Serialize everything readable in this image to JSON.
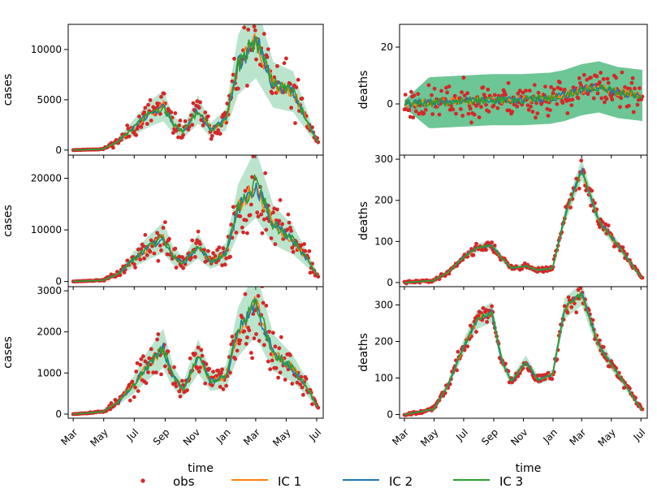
{
  "chart_data": {
    "type": "line",
    "months": [
      "Mar",
      "May",
      "Jul",
      "Sep",
      "Nov",
      "Jan",
      "Mar",
      "May",
      "Jul"
    ],
    "xlabel": "time",
    "colors": {
      "obs": "#d62728",
      "ic1": "#ff7f0e",
      "ic2": "#1f77b4",
      "ic3": "#2ca02c",
      "band": "#3cb371"
    },
    "legend": [
      "obs",
      "IC 1",
      "IC 2",
      "IC 3"
    ],
    "panels": [
      {
        "id": "cases-1",
        "ylabel": "cases",
        "ylim": [
          -500,
          12500
        ],
        "yticks": [
          0,
          5000,
          10000
        ],
        "ytick_labels": [
          "0",
          "5000",
          "10000"
        ],
        "x": [
          0,
          60,
          90,
          120,
          150,
          180,
          200,
          220,
          250,
          275,
          305,
          330,
          365,
          400,
          440,
          470,
          490
        ],
        "y": [
          0,
          100,
          900,
          2200,
          3500,
          4400,
          2600,
          1800,
          4000,
          2000,
          3000,
          8500,
          11000,
          6500,
          5800,
          2600,
          700
        ],
        "band": 0.35,
        "band_abs": 0,
        "seed": 11
      },
      {
        "id": "deaths-1",
        "ylabel": "deaths",
        "ylim": [
          -18,
          28
        ],
        "yticks": [
          0,
          20
        ],
        "ytick_labels": [
          "0",
          "20"
        ],
        "x": [
          0,
          60,
          120,
          180,
          240,
          300,
          330,
          365,
          400,
          440,
          490
        ],
        "y": [
          0,
          0.5,
          1,
          1.5,
          1.5,
          2,
          3,
          5,
          6,
          4,
          3
        ],
        "band": 0,
        "band_abs": 9,
        "seed": 23
      },
      {
        "id": "cases-2",
        "ylabel": "cases",
        "ylim": [
          -1000,
          24500
        ],
        "yticks": [
          0,
          10000,
          20000
        ],
        "ytick_labels": [
          "0",
          "10000",
          "20000"
        ],
        "x": [
          0,
          60,
          90,
          120,
          150,
          180,
          200,
          220,
          250,
          275,
          305,
          330,
          365,
          400,
          440,
          470,
          490
        ],
        "y": [
          0,
          250,
          1500,
          4200,
          6500,
          8500,
          5000,
          3500,
          6800,
          3800,
          5500,
          14000,
          19000,
          11000,
          8000,
          4000,
          1000
        ],
        "band": 0.35,
        "band_abs": 0,
        "seed": 37
      },
      {
        "id": "deaths-2",
        "ylabel": "deaths",
        "ylim": [
          -10,
          310
        ],
        "yticks": [
          0,
          100,
          200,
          300
        ],
        "ytick_labels": [
          "0",
          "100",
          "200",
          "300"
        ],
        "x": [
          0,
          60,
          90,
          120,
          150,
          180,
          200,
          220,
          250,
          275,
          305,
          330,
          365,
          400,
          440,
          470,
          490
        ],
        "y": [
          0,
          5,
          25,
          60,
          85,
          90,
          60,
          35,
          40,
          30,
          35,
          160,
          275,
          150,
          90,
          40,
          10
        ],
        "band": 0.08,
        "band_abs": 4,
        "seed": 41
      },
      {
        "id": "cases-3",
        "ylabel": "cases",
        "ylim": [
          -100,
          3100
        ],
        "yticks": [
          0,
          1000,
          2000,
          3000
        ],
        "ytick_labels": [
          "0",
          "1000",
          "2000",
          "3000"
        ],
        "x": [
          0,
          60,
          90,
          120,
          150,
          180,
          200,
          220,
          250,
          275,
          305,
          330,
          365,
          400,
          440,
          470,
          490
        ],
        "y": [
          0,
          60,
          300,
          700,
          1200,
          1600,
          900,
          600,
          1400,
          800,
          900,
          2000,
          2700,
          1500,
          1100,
          600,
          150
        ],
        "band": 0.3,
        "band_abs": 0,
        "seed": 53
      },
      {
        "id": "deaths-3",
        "ylabel": "deaths",
        "ylim": [
          -10,
          350
        ],
        "yticks": [
          0,
          100,
          200,
          300
        ],
        "ytick_labels": [
          "0",
          "100",
          "200",
          "300"
        ],
        "x": [
          0,
          60,
          90,
          120,
          150,
          180,
          200,
          220,
          250,
          275,
          305,
          330,
          365,
          400,
          440,
          470,
          490
        ],
        "y": [
          0,
          15,
          80,
          180,
          260,
          280,
          150,
          90,
          145,
          95,
          110,
          290,
          330,
          190,
          110,
          50,
          10
        ],
        "band": 0.08,
        "band_abs": 5,
        "seed": 67
      }
    ]
  }
}
